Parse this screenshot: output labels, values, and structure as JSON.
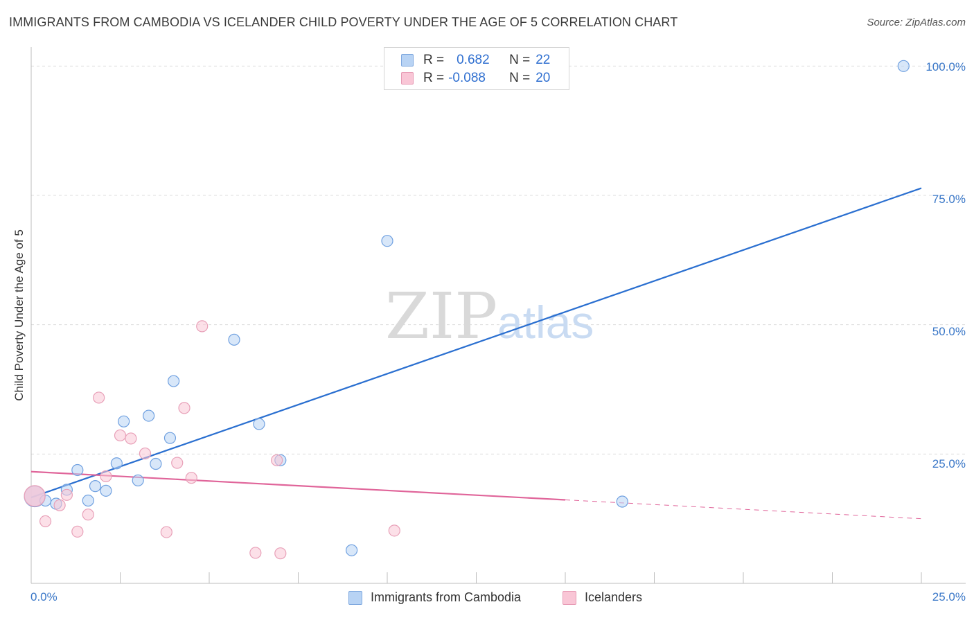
{
  "header": {
    "title": "IMMIGRANTS FROM CAMBODIA VS ICELANDER CHILD POVERTY UNDER THE AGE OF 5 CORRELATION CHART",
    "source": "Source: ZipAtlas.com"
  },
  "watermark": {
    "zip": "ZIP",
    "atlas": "atlas"
  },
  "legend": {
    "r_label": "R =",
    "n_label": "N =",
    "rows": [
      {
        "r": "0.682",
        "n": "22",
        "color": "#b8d3f4"
      },
      {
        "r": "-0.088",
        "n": "20",
        "color": "#f9c6d6"
      }
    ]
  },
  "chart_data": {
    "type": "scatter",
    "title": "IMMIGRANTS FROM CAMBODIA VS ICELANDER CHILD POVERTY UNDER THE AGE OF 5 CORRELATION CHART",
    "xlabel": "",
    "ylabel": "Child Poverty Under the Age of 5",
    "xlim": [
      0,
      25
    ],
    "ylim": [
      0,
      105
    ],
    "x_tick_labels": [
      "0.0%",
      "25.0%"
    ],
    "y_tick_labels": [
      "25.0%",
      "50.0%",
      "75.0%",
      "100.0%"
    ],
    "y_ticks": [
      25,
      50,
      75,
      100
    ],
    "series": [
      {
        "name": "Immigrants from Cambodia",
        "color": "#6fa0e0",
        "fill": "#b8d3f4",
        "line_color": "#2a6fd0",
        "trend": {
          "x": [
            0,
            25
          ],
          "y": [
            16.6,
            76.4
          ],
          "dashed_from": null
        },
        "points": [
          {
            "x": 0.1,
            "y": 16.8,
            "big": true
          },
          {
            "x": 0.4,
            "y": 16.0
          },
          {
            "x": 0.7,
            "y": 15.4
          },
          {
            "x": 1.0,
            "y": 18.1
          },
          {
            "x": 1.3,
            "y": 21.9
          },
          {
            "x": 1.6,
            "y": 16.0
          },
          {
            "x": 1.8,
            "y": 18.8
          },
          {
            "x": 2.1,
            "y": 17.9
          },
          {
            "x": 2.4,
            "y": 23.2
          },
          {
            "x": 2.6,
            "y": 31.3
          },
          {
            "x": 3.0,
            "y": 19.9
          },
          {
            "x": 3.3,
            "y": 32.4
          },
          {
            "x": 3.5,
            "y": 23.1
          },
          {
            "x": 3.9,
            "y": 28.1
          },
          {
            "x": 4.0,
            "y": 39.1
          },
          {
            "x": 5.7,
            "y": 47.1
          },
          {
            "x": 6.4,
            "y": 30.8
          },
          {
            "x": 7.0,
            "y": 23.8
          },
          {
            "x": 9.0,
            "y": 6.4
          },
          {
            "x": 10.0,
            "y": 66.2
          },
          {
            "x": 16.6,
            "y": 15.8
          },
          {
            "x": 24.5,
            "y": 100.0
          }
        ]
      },
      {
        "name": "Icelanders",
        "color": "#e8a0b8",
        "fill": "#f9c6d6",
        "line_color": "#e0659a",
        "trend": {
          "x": [
            0,
            25
          ],
          "y": [
            21.6,
            12.5
          ],
          "dashed_from": 15.0
        },
        "points": [
          {
            "x": 0.1,
            "y": 16.9,
            "big": true
          },
          {
            "x": 0.4,
            "y": 12.0
          },
          {
            "x": 0.8,
            "y": 15.1
          },
          {
            "x": 1.0,
            "y": 17.1
          },
          {
            "x": 1.3,
            "y": 10.0
          },
          {
            "x": 1.6,
            "y": 13.3
          },
          {
            "x": 1.9,
            "y": 35.9
          },
          {
            "x": 2.1,
            "y": 20.7
          },
          {
            "x": 2.5,
            "y": 28.6
          },
          {
            "x": 2.8,
            "y": 28.0
          },
          {
            "x": 3.2,
            "y": 25.1
          },
          {
            "x": 3.8,
            "y": 9.9
          },
          {
            "x": 4.1,
            "y": 23.3
          },
          {
            "x": 4.3,
            "y": 33.9
          },
          {
            "x": 4.5,
            "y": 20.4
          },
          {
            "x": 4.8,
            "y": 49.7
          },
          {
            "x": 6.3,
            "y": 5.9
          },
          {
            "x": 6.9,
            "y": 23.8
          },
          {
            "x": 7.0,
            "y": 5.8
          },
          {
            "x": 10.2,
            "y": 10.2
          }
        ]
      }
    ]
  }
}
